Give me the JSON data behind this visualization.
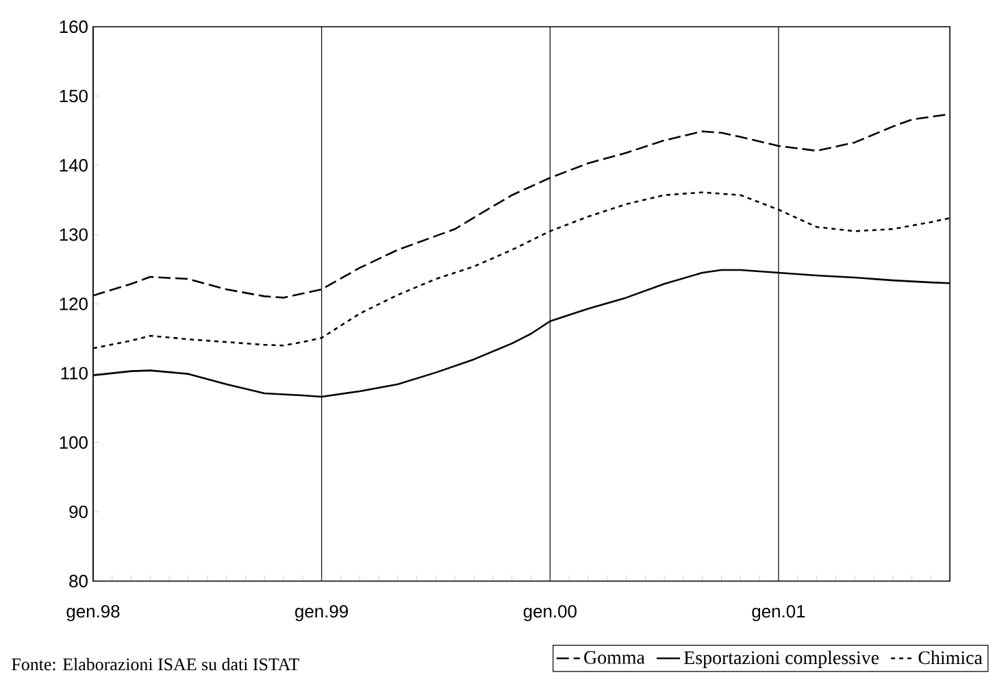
{
  "chart_data": {
    "type": "line",
    "xlim": [
      "1998-01",
      "2001-10"
    ],
    "ylim": [
      80,
      160
    ],
    "xticks": [
      {
        "value": "1998-01",
        "label": "gen.98"
      },
      {
        "value": "1998-02",
        "label": null
      },
      {
        "value": "1998-03",
        "label": null
      },
      {
        "value": "1998-04",
        "label": null
      },
      {
        "value": "1998-05",
        "label": null
      },
      {
        "value": "1998-06",
        "label": null
      },
      {
        "value": "1998-07",
        "label": null
      },
      {
        "value": "1998-08",
        "label": null
      },
      {
        "value": "1998-09",
        "label": null
      },
      {
        "value": "1998-10",
        "label": null
      },
      {
        "value": "1998-11",
        "label": null
      },
      {
        "value": "1998-12",
        "label": null
      },
      {
        "value": "1999-01",
        "label": "gen.99"
      },
      {
        "value": "1999-02",
        "label": null
      },
      {
        "value": "1999-03",
        "label": null
      },
      {
        "value": "1999-04",
        "label": null
      },
      {
        "value": "1999-05",
        "label": null
      },
      {
        "value": "1999-06",
        "label": null
      },
      {
        "value": "1999-07",
        "label": null
      },
      {
        "value": "1999-08",
        "label": null
      },
      {
        "value": "1999-09",
        "label": null
      },
      {
        "value": "1999-10",
        "label": null
      },
      {
        "value": "1999-11",
        "label": null
      },
      {
        "value": "1999-12",
        "label": null
      },
      {
        "value": "2000-01",
        "label": "gen.00"
      },
      {
        "value": "2000-02",
        "label": null
      },
      {
        "value": "2000-03",
        "label": null
      },
      {
        "value": "2000-04",
        "label": null
      },
      {
        "value": "2000-05",
        "label": null
      },
      {
        "value": "2000-06",
        "label": null
      },
      {
        "value": "2000-07",
        "label": null
      },
      {
        "value": "2000-08",
        "label": null
      },
      {
        "value": "2000-09",
        "label": null
      },
      {
        "value": "2000-10",
        "label": null
      },
      {
        "value": "2000-11",
        "label": null
      },
      {
        "value": "2000-12",
        "label": null
      },
      {
        "value": "2001-01",
        "label": "gen.01"
      },
      {
        "value": "2001-02",
        "label": null
      },
      {
        "value": "2001-03",
        "label": null
      },
      {
        "value": "2001-04",
        "label": null
      },
      {
        "value": "2001-05",
        "label": null
      },
      {
        "value": "2001-06",
        "label": null
      },
      {
        "value": "2001-07",
        "label": null
      },
      {
        "value": "2001-08",
        "label": null
      },
      {
        "value": "2001-09",
        "label": null
      },
      {
        "value": "2001-10",
        "label": null
      }
    ],
    "yticks": [
      80,
      90,
      100,
      110,
      120,
      130,
      140,
      150,
      160
    ],
    "grid": "x",
    "legend": "bottom right",
    "marker": "none",
    "annotations": [
      "Fonte: Elaborazioni ISAE su dati ISTAT"
    ],
    "series": [
      {
        "name": "Gomma",
        "color": "#000000",
        "line_style": "dashed",
        "x": [
          "1998-01",
          "1998-03",
          "1998-04",
          "1998-06",
          "1998-08",
          "1998-10",
          "1998-11",
          "1999-01",
          "1999-03",
          "1999-05",
          "1999-07",
          "1999-08",
          "1999-10",
          "1999-11",
          "2000-01",
          "2000-03",
          "2000-05",
          "2000-07",
          "2000-09",
          "2000-10",
          "2000-11",
          "2001-01",
          "2001-03",
          "2001-05",
          "2001-07",
          "2001-08",
          "2001-10"
        ],
        "values": [
          121.2,
          122.9,
          123.9,
          123.6,
          122.1,
          121.1,
          120.9,
          122.1,
          125.2,
          127.8,
          129.8,
          130.8,
          134.1,
          135.7,
          138.2,
          140.3,
          141.8,
          143.6,
          144.9,
          144.7,
          144.1,
          142.8,
          142.1,
          143.3,
          145.6,
          146.6,
          147.4
        ]
      },
      {
        "name": "Esportazioni complessive",
        "color": "#000000",
        "line_style": "solid",
        "x": [
          "1998-01",
          "1998-03",
          "1998-04",
          "1998-06",
          "1998-08",
          "1998-10",
          "1998-12",
          "1999-01",
          "1999-03",
          "1999-05",
          "1999-07",
          "1999-09",
          "1999-11",
          "1999-12",
          "2000-01",
          "2000-03",
          "2000-05",
          "2000-07",
          "2000-09",
          "2000-10",
          "2000-11",
          "2001-01",
          "2001-03",
          "2001-05",
          "2001-07",
          "2001-09",
          "2001-10"
        ],
        "values": [
          109.7,
          110.3,
          110.4,
          109.9,
          108.4,
          107.1,
          106.8,
          106.6,
          107.4,
          108.4,
          110.1,
          112.0,
          114.3,
          115.7,
          117.5,
          119.3,
          120.9,
          122.9,
          124.5,
          124.9,
          124.9,
          124.5,
          124.1,
          123.8,
          123.4,
          123.1,
          123.0
        ]
      },
      {
        "name": "Chimica",
        "color": "#000000",
        "line_style": "dotted",
        "x": [
          "1998-01",
          "1998-03",
          "1998-04",
          "1998-06",
          "1998-08",
          "1998-10",
          "1998-11",
          "1998-12",
          "1999-01",
          "1999-03",
          "1999-05",
          "1999-07",
          "1999-09",
          "1999-11",
          "2000-01",
          "2000-03",
          "2000-05",
          "2000-07",
          "2000-09",
          "2000-11",
          "2001-01",
          "2001-03",
          "2001-05",
          "2001-07",
          "2001-09",
          "2001-10"
        ],
        "values": [
          113.6,
          114.7,
          115.4,
          114.9,
          114.5,
          114.1,
          114.0,
          114.5,
          115.1,
          118.6,
          121.3,
          123.6,
          125.4,
          127.8,
          130.5,
          132.6,
          134.4,
          135.7,
          136.1,
          135.7,
          133.6,
          131.1,
          130.5,
          130.8,
          131.8,
          132.4
        ]
      }
    ]
  }
}
